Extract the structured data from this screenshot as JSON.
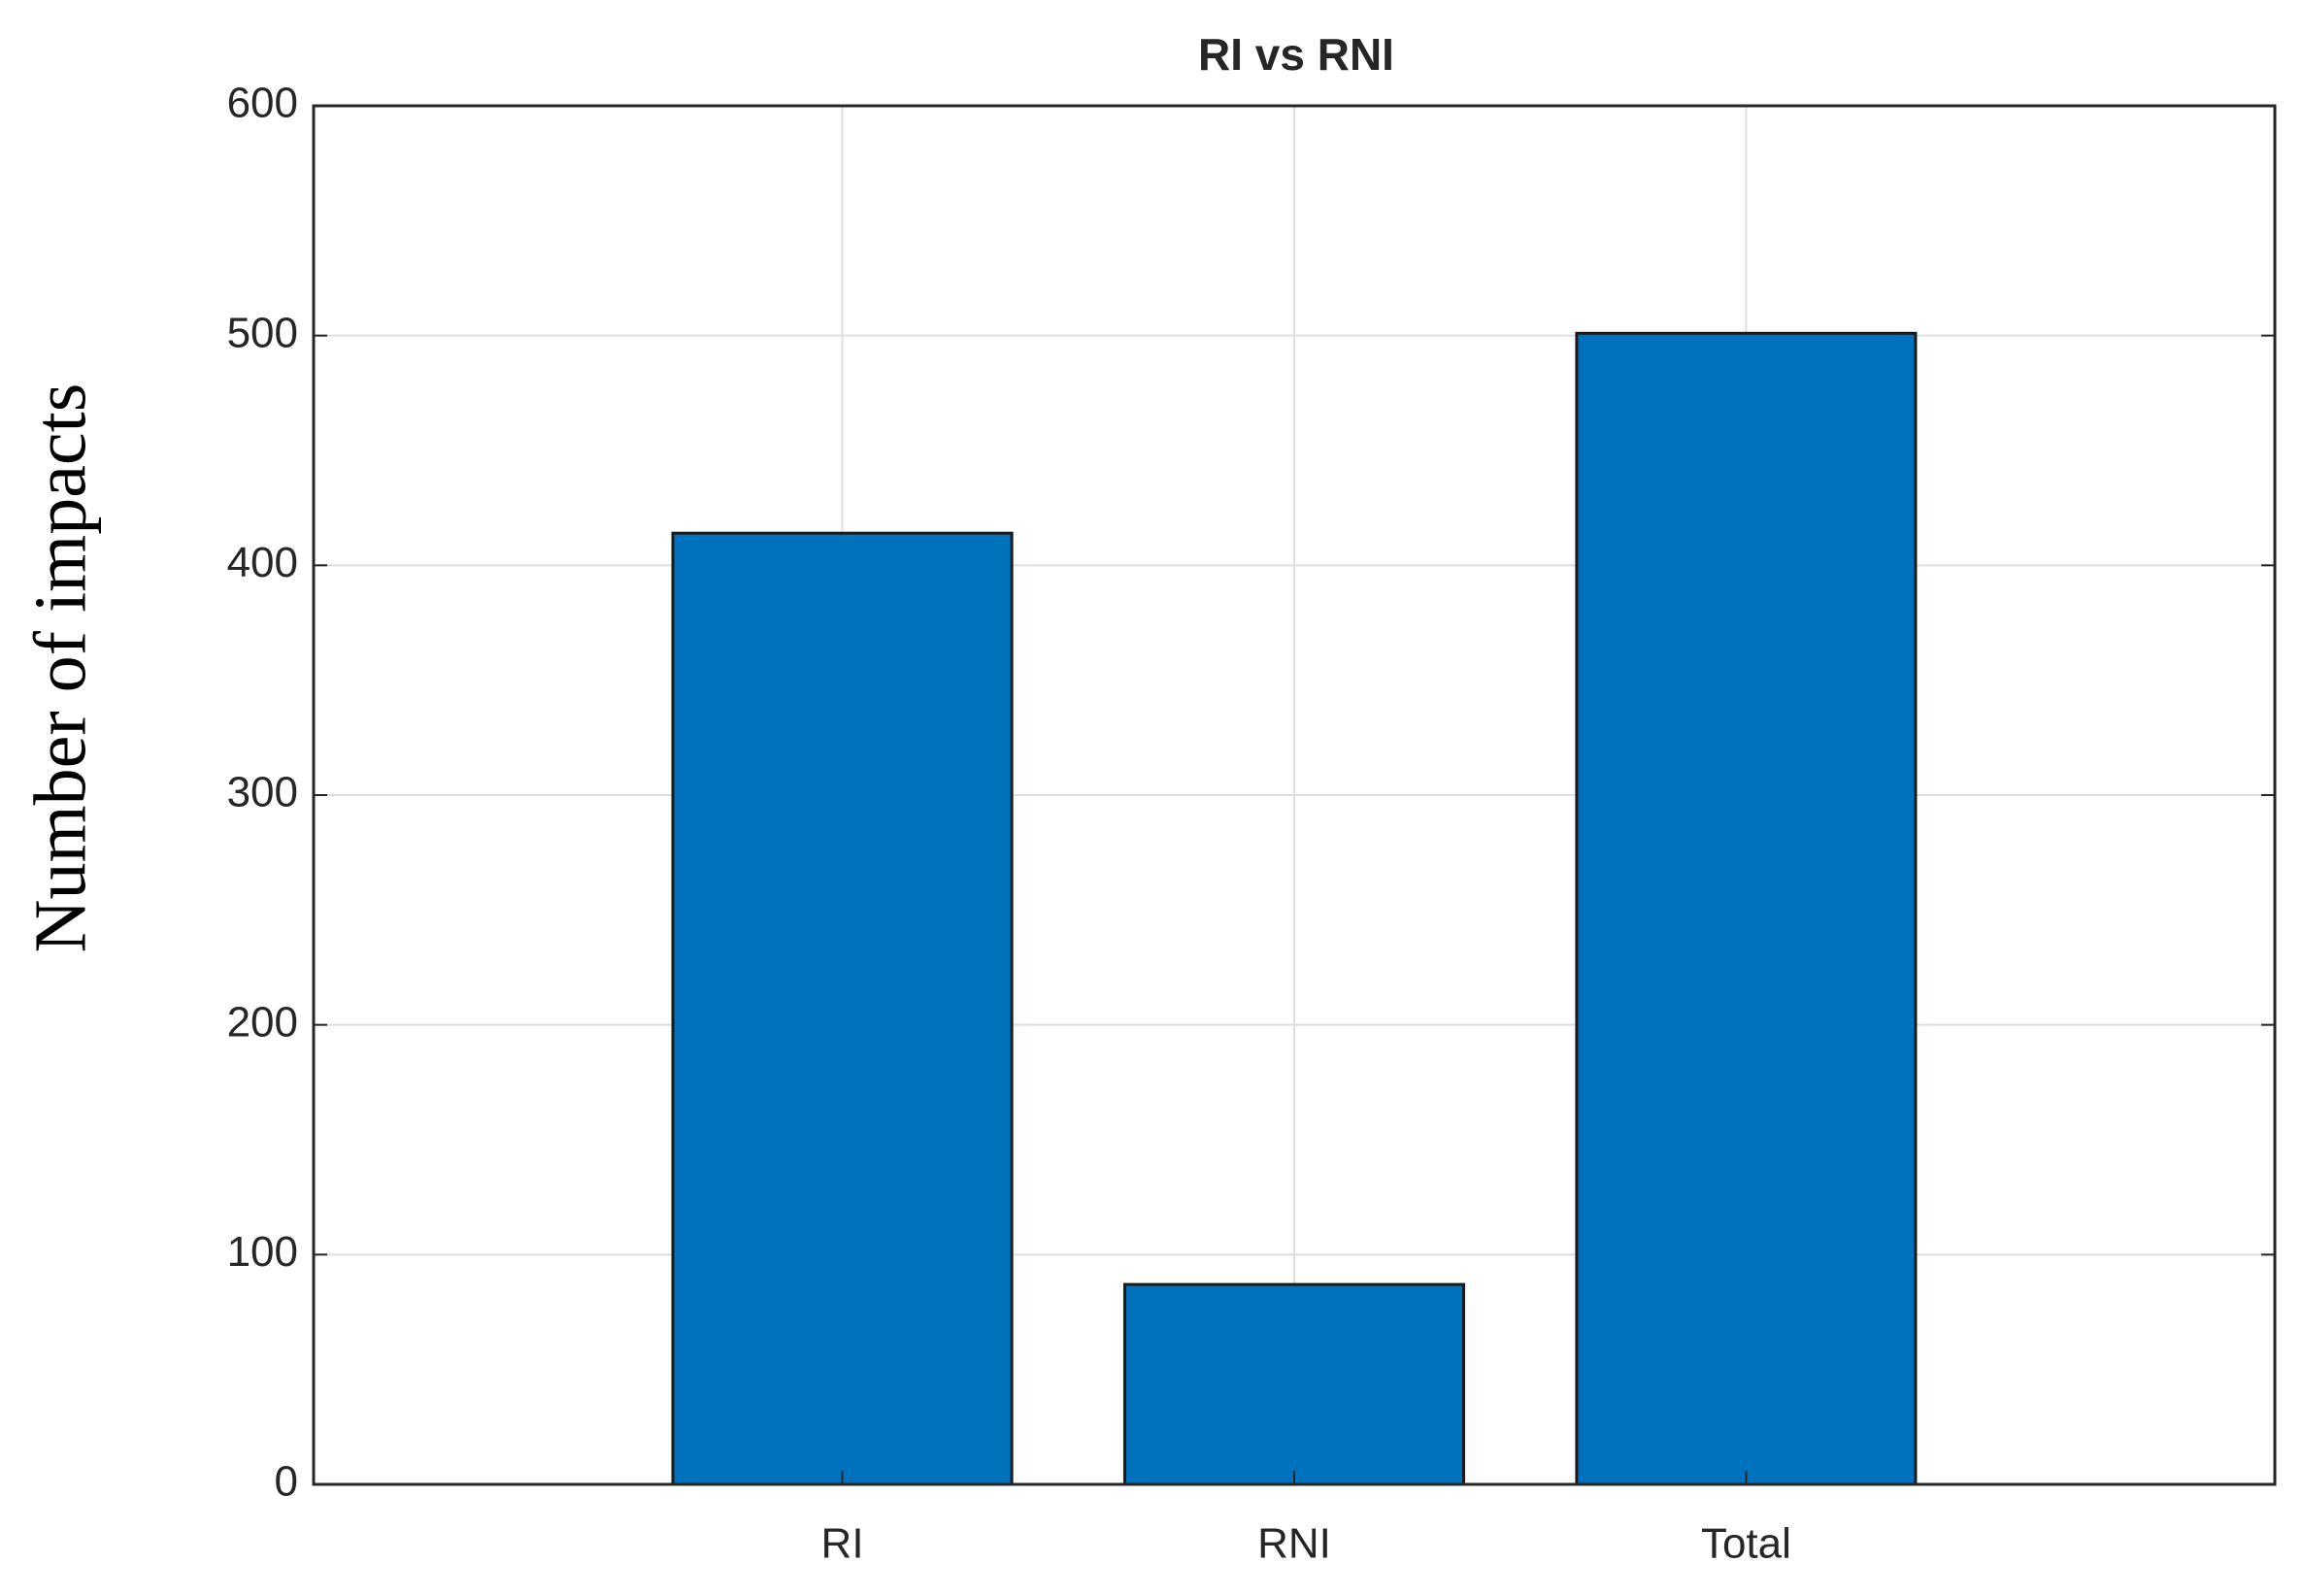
{
  "chart_data": {
    "type": "bar",
    "title": "RI vs RNI",
    "y_label": "Number of impacts",
    "categories": [
      "RI",
      "RNI",
      "Total"
    ],
    "values": [
      414,
      87,
      501
    ],
    "color": "#0072bd",
    "ylim": [
      0,
      600
    ],
    "yticks": [
      0,
      100,
      200,
      300,
      400,
      500,
      600
    ],
    "grid": true
  }
}
